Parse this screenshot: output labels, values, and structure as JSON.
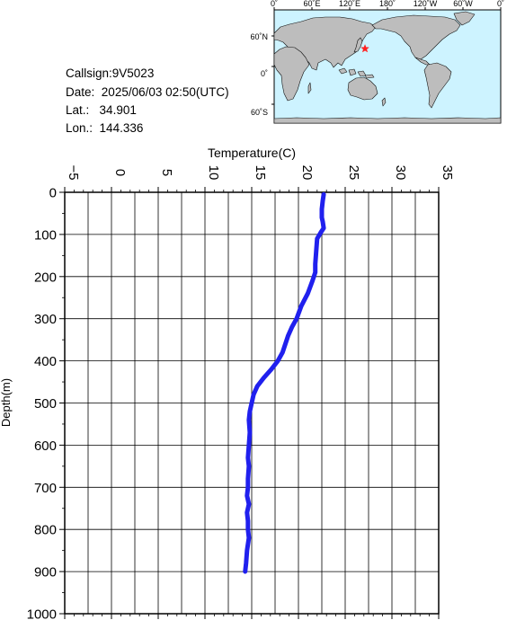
{
  "station": {
    "callsign_label": "Callsign:",
    "callsign": "9V5023",
    "date_label": "Date:",
    "date": "2025/06/03 02:50(UTC)",
    "lat_label": "Lat.:",
    "lat": "34.901",
    "lon_label": "Lon.:",
    "lon": "144.336"
  },
  "map": {
    "top_labels": [
      "0˚",
      "60˚E",
      "120˚E",
      "180˚",
      "120˚W",
      "60˚W",
      "0˚"
    ],
    "left_labels": [
      "60˚N",
      "0˚",
      "60˚S"
    ],
    "ocean_color": "#cdf3ff",
    "land_color": "#bdbdbd",
    "marker_color": "#ff2020",
    "marker_lon": 144.336,
    "marker_lat": 34.901
  },
  "chart_data": {
    "type": "line",
    "xlabel": "Temperature(C)",
    "ylabel": "Depth(m)",
    "xlim": [
      -5,
      35
    ],
    "ylim": [
      1000,
      0
    ],
    "x_ticks": [
      -5,
      0,
      5,
      10,
      15,
      20,
      25,
      30,
      35
    ],
    "y_ticks": [
      0,
      100,
      200,
      300,
      400,
      500,
      600,
      700,
      800,
      900,
      1000
    ],
    "grid": true,
    "line_color": "#2020ee",
    "series": [
      {
        "x": [
          22.7,
          22.6,
          22.5,
          22.5,
          22.6,
          22.7,
          22.4,
          22.0,
          21.9,
          21.8,
          21.8,
          21.5,
          21.0,
          20.3,
          19.8,
          19.3,
          18.9,
          18.6,
          18.3,
          17.8,
          17.1,
          16.3,
          15.6,
          15.2,
          15.0,
          14.8,
          14.7,
          14.8,
          14.7,
          14.6,
          14.7,
          14.6,
          14.6,
          14.5,
          14.7,
          14.5,
          14.6,
          14.6,
          14.7,
          14.5,
          14.4,
          14.3
        ],
        "y": [
          5,
          20,
          40,
          60,
          70,
          85,
          95,
          110,
          140,
          170,
          190,
          210,
          240,
          270,
          300,
          320,
          340,
          360,
          380,
          400,
          420,
          440,
          460,
          480,
          500,
          520,
          540,
          570,
          600,
          630,
          650,
          680,
          700,
          720,
          740,
          760,
          780,
          800,
          820,
          850,
          880,
          900
        ]
      }
    ]
  }
}
